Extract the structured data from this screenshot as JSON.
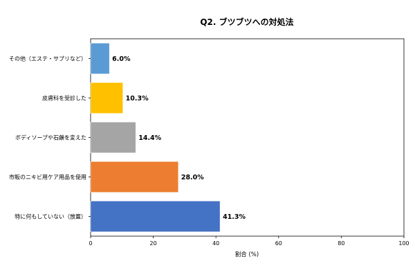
{
  "chart_data": {
    "type": "bar",
    "orientation": "horizontal",
    "title": "Q2. ブツブツへの対処法",
    "xlabel": "割合 (%)",
    "ylabel": "",
    "xlim": [
      0,
      100
    ],
    "xticks": [
      "0",
      "20",
      "40",
      "60",
      "80",
      "100"
    ],
    "grid": false,
    "categories": [
      "その他（エステ・サプリなど）",
      "皮膚科を受診した",
      "ボディソープや石鹸を変えた",
      "市販のニキビ用ケア用品を使用",
      "特に何もしていない（放置）"
    ],
    "values": [
      6.0,
      10.3,
      14.4,
      28.0,
      41.3
    ],
    "value_labels": [
      "6.0%",
      "10.3%",
      "14.4%",
      "28.0%",
      "41.3%"
    ],
    "colors": [
      "#5b9bd5",
      "#ffc000",
      "#a5a5a5",
      "#ed7d31",
      "#4472c4"
    ]
  }
}
